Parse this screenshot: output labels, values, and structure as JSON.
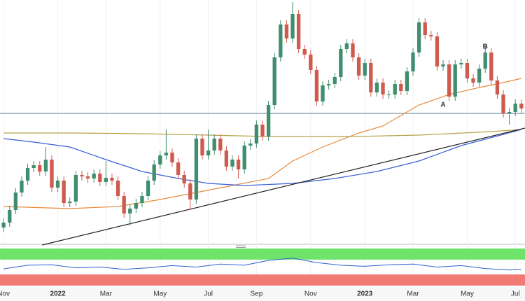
{
  "chart_data": {
    "type": "candlestick",
    "xlim": [
      -0.6,
      86.6
    ],
    "ylim": [
      0,
      350
    ],
    "xticks": [
      {
        "value": 0,
        "label": "Nov"
      },
      {
        "value": 9,
        "label": "2022"
      },
      {
        "value": 17,
        "label": "Mar"
      },
      {
        "value": 26,
        "label": "May"
      },
      {
        "value": 34,
        "label": "Jul"
      },
      {
        "value": 42,
        "label": "Sep"
      },
      {
        "value": 51,
        "label": "Nov"
      },
      {
        "value": 60,
        "label": "2023"
      },
      {
        "value": 68,
        "label": "Mar"
      },
      {
        "value": 77,
        "label": "May"
      },
      {
        "value": 85,
        "label": "Jul"
      }
    ],
    "up_color": "#3f8f6f",
    "down_color": "#cf5a4e",
    "open": [
      25,
      32,
      50,
      75,
      92,
      110,
      114,
      105,
      122,
      82,
      92,
      60,
      62,
      100,
      98,
      95,
      102,
      90,
      96,
      92,
      70,
      45,
      52,
      60,
      70,
      92,
      115,
      128,
      132,
      118,
      100,
      88,
      65,
      152,
      128,
      135,
      152,
      135,
      112,
      122,
      108,
      142,
      145,
      172,
      155,
      200,
      268,
      315,
      295,
      330,
      280,
      272,
      250,
      205,
      228,
      230,
      240,
      280,
      288,
      268,
      242,
      260,
      218,
      232,
      215,
      215,
      230,
      220,
      248,
      275,
      318,
      300,
      298,
      255,
      258,
      212,
      258,
      260,
      238,
      232,
      252,
      275,
      235,
      215,
      188,
      190,
      202
    ],
    "high": [
      38,
      56,
      81,
      98,
      116,
      120,
      120,
      140,
      128,
      98,
      98,
      68,
      106,
      106,
      104,
      108,
      108,
      120,
      102,
      98,
      76,
      58,
      66,
      76,
      98,
      121,
      134,
      165,
      138,
      124,
      106,
      94,
      158,
      158,
      165,
      158,
      158,
      141,
      128,
      128,
      148,
      151,
      178,
      178,
      206,
      274,
      321,
      321,
      347,
      336,
      286,
      278,
      256,
      234,
      236,
      246,
      286,
      294,
      294,
      274,
      266,
      266,
      238,
      238,
      221,
      236,
      236,
      254,
      281,
      324,
      324,
      306,
      304,
      264,
      264,
      264,
      266,
      266,
      244,
      258,
      285,
      281,
      241,
      221,
      196,
      208,
      208
    ],
    "low": [
      19,
      26,
      44,
      69,
      86,
      104,
      99,
      99,
      76,
      76,
      54,
      54,
      56,
      92,
      89,
      89,
      84,
      84,
      86,
      64,
      39,
      28,
      46,
      54,
      64,
      86,
      109,
      122,
      112,
      94,
      82,
      50,
      59,
      122,
      122,
      129,
      129,
      106,
      106,
      95,
      102,
      136,
      139,
      149,
      149,
      194,
      262,
      289,
      289,
      274,
      266,
      244,
      199,
      199,
      222,
      224,
      234,
      274,
      262,
      236,
      236,
      212,
      212,
      209,
      209,
      209,
      214,
      214,
      242,
      269,
      294,
      292,
      249,
      249,
      206,
      206,
      252,
      232,
      226,
      226,
      246,
      229,
      209,
      182,
      172,
      184,
      189
    ],
    "close": [
      32,
      50,
      75,
      92,
      110,
      114,
      105,
      122,
      82,
      92,
      60,
      62,
      100,
      98,
      95,
      102,
      90,
      96,
      92,
      70,
      45,
      52,
      60,
      70,
      92,
      115,
      128,
      132,
      118,
      100,
      88,
      65,
      152,
      128,
      135,
      152,
      135,
      112,
      122,
      108,
      142,
      145,
      172,
      155,
      200,
      268,
      315,
      295,
      330,
      280,
      272,
      250,
      205,
      228,
      230,
      240,
      280,
      288,
      268,
      242,
      260,
      218,
      232,
      215,
      215,
      230,
      220,
      248,
      275,
      318,
      300,
      298,
      255,
      258,
      212,
      258,
      260,
      238,
      232,
      252,
      275,
      235,
      215,
      188,
      190,
      202,
      195
    ],
    "lines": [
      {
        "color": "#e8893a",
        "x": [
          0,
          11,
          19,
          26,
          32,
          38,
          44,
          48,
          53,
          59,
          63,
          69,
          74,
          79,
          83,
          86
        ],
        "values": [
          55,
          52,
          55,
          65,
          75,
          85,
          95,
          120,
          140,
          160,
          170,
          200,
          215,
          225,
          232,
          238
        ]
      },
      {
        "color": "#3a5fd6",
        "x": [
          0,
          5,
          11,
          17,
          23,
          29,
          34,
          40,
          48,
          55,
          62,
          69,
          76,
          83,
          86
        ],
        "values": [
          152,
          147,
          140,
          122,
          105,
          95,
          88,
          85,
          88,
          95,
          105,
          120,
          142,
          158,
          165
        ]
      },
      {
        "color": "#b5a048",
        "x": [
          0,
          11,
          23,
          34,
          44,
          58,
          69,
          81,
          86
        ],
        "values": [
          160,
          160,
          159,
          157,
          155,
          155,
          157,
          162,
          165
        ]
      }
    ],
    "trendline": {
      "color": "#222222",
      "x": [
        6.4,
        86.6
      ],
      "values": [
        0,
        167
      ]
    },
    "hline": {
      "color": "#557a95",
      "value": 188
    },
    "annotations": [
      {
        "text": "A",
        "x": 73,
        "y": 200
      },
      {
        "text": "B",
        "x": 80,
        "y": 283
      }
    ],
    "rsi": {
      "color": "#2f5fd0",
      "ylim": [
        0,
        100
      ],
      "overbought": 70,
      "oversold": 30,
      "x": [
        0,
        4,
        8,
        12,
        16,
        20,
        24,
        28,
        32,
        36,
        40,
        44,
        48,
        52,
        56,
        60,
        64,
        68,
        72,
        76,
        80,
        84,
        86
      ],
      "values": [
        45,
        55,
        56,
        48,
        50,
        44,
        48,
        54,
        50,
        58,
        55,
        68,
        74,
        62,
        55,
        52,
        56,
        58,
        50,
        54,
        46,
        42,
        44
      ]
    }
  }
}
